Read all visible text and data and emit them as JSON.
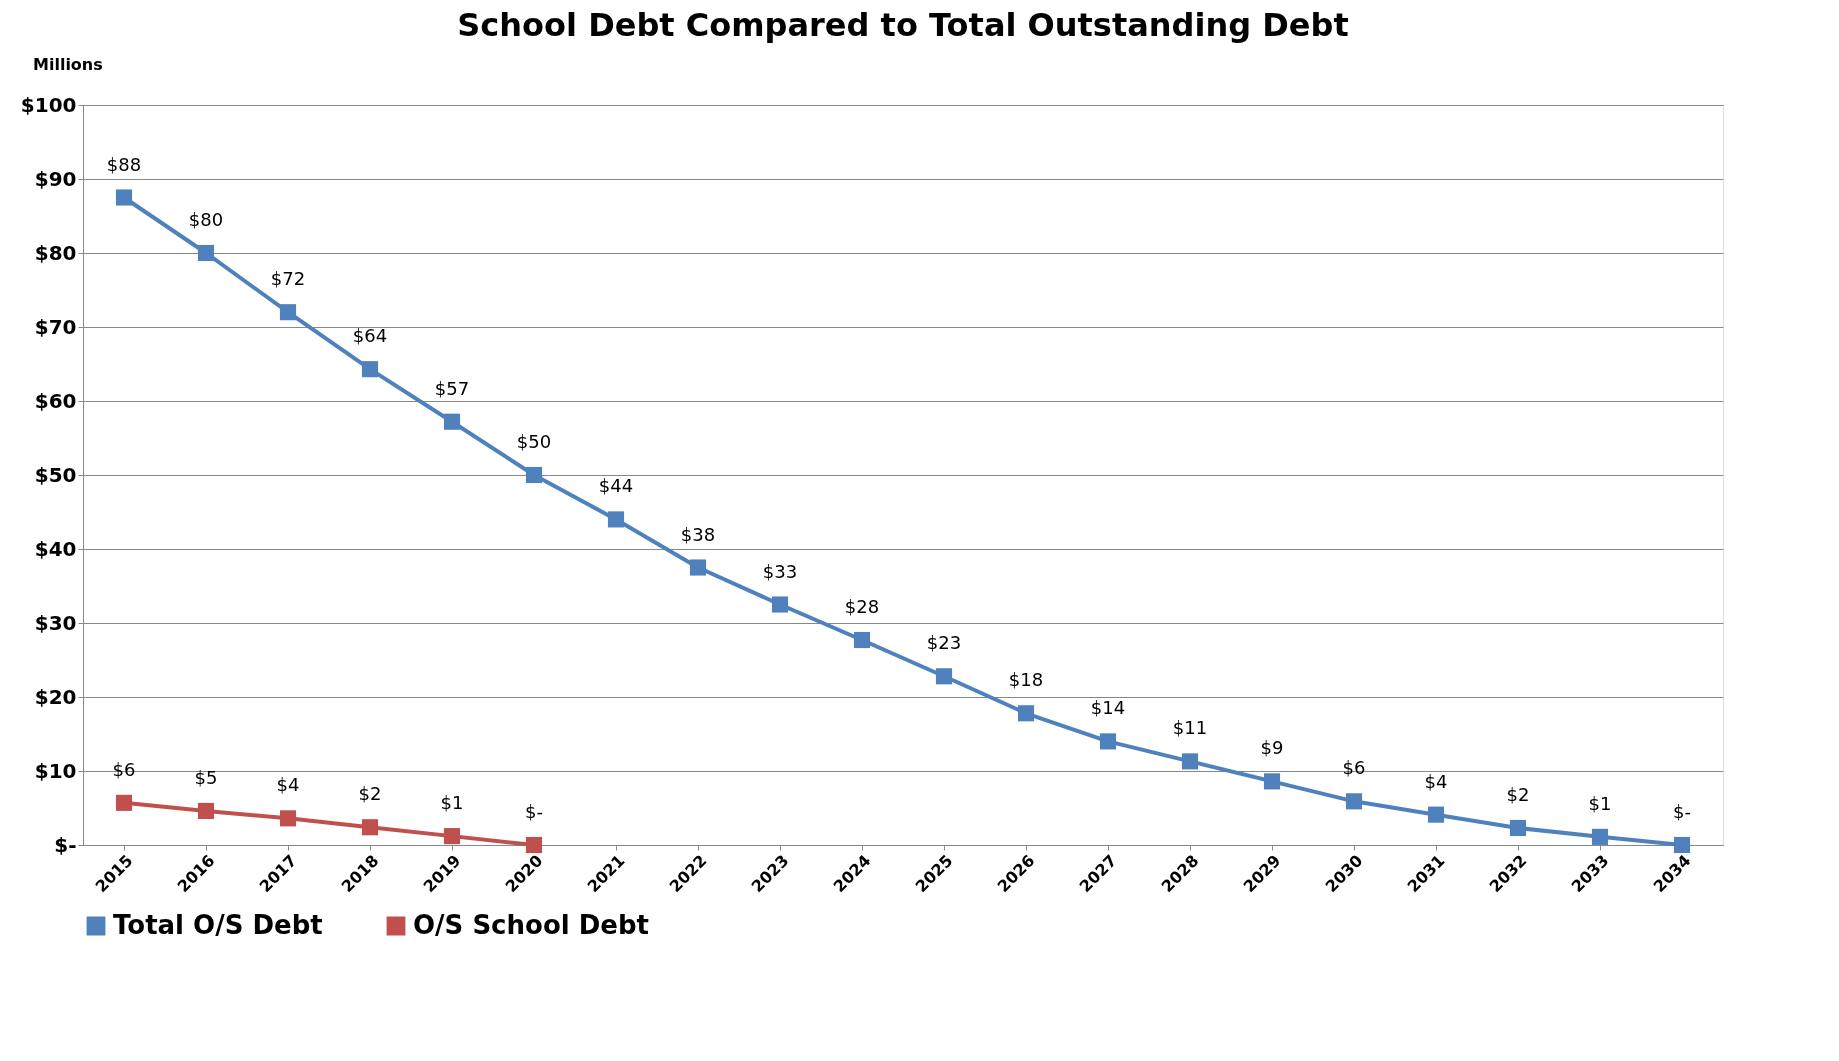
{
  "chart_data": {
    "type": "line",
    "title": "School Debt Compared to Total Outstanding Debt",
    "annotations": [
      "Millions"
    ],
    "categories": [
      "2015",
      "2016",
      "2017",
      "2018",
      "2019",
      "2020",
      "2021",
      "2022",
      "2023",
      "2024",
      "2025",
      "2026",
      "2027",
      "2028",
      "2029",
      "2030",
      "2031",
      "2032",
      "2033",
      "2034"
    ],
    "series": [
      {
        "name": "Total O/S Debt",
        "color": "#4f81bd",
        "values": [
          87.5,
          80,
          72,
          64.3,
          57.2,
          50,
          44,
          37.5,
          32.5,
          27.7,
          22.8,
          17.8,
          14,
          11.3,
          8.6,
          5.9,
          4.1,
          2.3,
          1.1,
          0
        ],
        "value_labels": [
          "$88",
          "$80",
          "$72",
          "$64",
          "$57",
          "$50",
          "$44",
          "$38",
          "$33",
          "$28",
          "$23",
          "$18",
          "$14",
          "$11",
          "$9",
          "$6",
          "$4",
          "$2",
          "$1",
          "$-"
        ]
      },
      {
        "name": "O/S School Debt",
        "color": "#c0504d",
        "values": [
          5.7,
          4.6,
          3.6,
          2.4,
          1.2,
          0,
          null,
          null,
          null,
          null,
          null,
          null,
          null,
          null,
          null,
          null,
          null,
          null,
          null,
          null
        ],
        "value_labels": [
          "$6",
          "$5",
          "$4",
          "$2",
          "$1",
          "$-",
          null,
          null,
          null,
          null,
          null,
          null,
          null,
          null,
          null,
          null,
          null,
          null,
          null,
          null
        ]
      }
    ],
    "ylim": [
      0,
      100
    ],
    "yticks": [
      {
        "value": 0,
        "label": "$-"
      },
      {
        "value": 10,
        "label": "$10"
      },
      {
        "value": 20,
        "label": "$20"
      },
      {
        "value": 30,
        "label": "$30"
      },
      {
        "value": 40,
        "label": "$40"
      },
      {
        "value": 50,
        "label": "$50"
      },
      {
        "value": 60,
        "label": "$60"
      },
      {
        "value": 70,
        "label": "$70"
      },
      {
        "value": 80,
        "label": "$80"
      },
      {
        "value": 90,
        "label": "$90"
      },
      {
        "value": 100,
        "label": "$100"
      }
    ],
    "grid": "y",
    "legend": "bottom",
    "marker": "square",
    "line_style": "solid"
  }
}
